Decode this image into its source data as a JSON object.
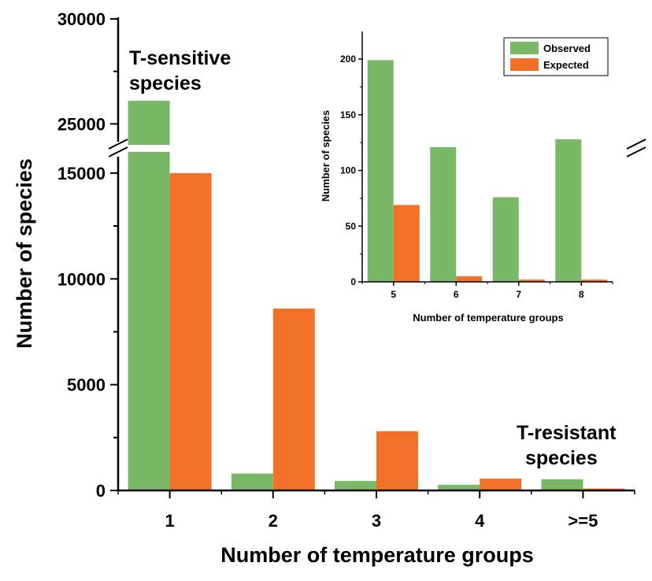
{
  "chart_data": [
    {
      "type": "bar",
      "xlabel": "Number of temperature groups",
      "ylabel": "Number of species",
      "categories": [
        "1",
        "2",
        "3",
        "4",
        ">=5"
      ],
      "series": [
        {
          "values": [
            26100,
            800,
            450,
            270,
            530
          ],
          "color": "#79b965"
        },
        {
          "values": [
            15000,
            8600,
            2800,
            560,
            90
          ],
          "color": "#f07127"
        }
      ],
      "y_axis": {
        "broken": true,
        "lower_range": [
          0,
          16000
        ],
        "upper_range": [
          24000,
          30000
        ],
        "lower_ticks": [
          0,
          5000,
          10000,
          15000
        ],
        "upper_ticks": [
          25000,
          30000
        ]
      },
      "annotations": [
        {
          "text_lines": [
            "T-sensitive",
            "species"
          ],
          "placement": "top-left"
        },
        {
          "text_lines": [
            "T-resistant",
            "species"
          ],
          "placement": "bottom-right"
        }
      ]
    },
    {
      "type": "bar",
      "role": "inset",
      "xlabel": "Number of temperature groups",
      "ylabel": "Number of species",
      "categories": [
        "5",
        "6",
        "7",
        "8"
      ],
      "ylim": [
        0,
        225
      ],
      "y_ticks": [
        0,
        50,
        100,
        150,
        200
      ],
      "legend_position": "top-right",
      "series": [
        {
          "name": "Observed",
          "values": [
            199,
            121,
            76,
            128
          ],
          "color": "#79b965"
        },
        {
          "name": "Expected",
          "values": [
            69,
            5,
            2,
            2
          ],
          "color": "#f07127"
        }
      ]
    }
  ]
}
